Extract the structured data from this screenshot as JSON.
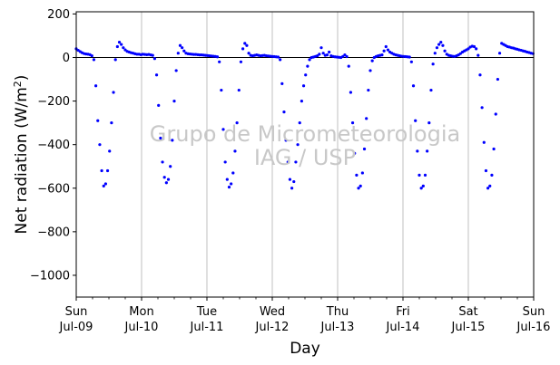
{
  "chart_data": {
    "type": "scatter",
    "title": "",
    "xlabel": "Day",
    "ylabel": "Net radiation (W/m²)",
    "ylabel_parts": {
      "before": "Net radiation (W/m",
      "sup": "2",
      "after": ")"
    },
    "watermark": [
      "Grupo de Micrometeorologia",
      "IAG / USP"
    ],
    "xlim": [
      0,
      7
    ],
    "ylim": [
      -1100,
      210
    ],
    "x_unit": "days since Sun Jul-09",
    "x_ticks": [
      {
        "x": 0,
        "day": "Sun",
        "date": "Jul-09"
      },
      {
        "x": 1,
        "day": "Mon",
        "date": "Jul-10"
      },
      {
        "x": 2,
        "day": "Tue",
        "date": "Jul-11"
      },
      {
        "x": 3,
        "day": "Wed",
        "date": "Jul-12"
      },
      {
        "x": 4,
        "day": "Thu",
        "date": "Jul-13"
      },
      {
        "x": 5,
        "day": "Fri",
        "date": "Jul-14"
      },
      {
        "x": 6,
        "day": "Sat",
        "date": "Jul-15"
      },
      {
        "x": 7,
        "day": "Sun",
        "date": "Jul-16"
      }
    ],
    "y_ticks": [
      200,
      0,
      -200,
      -400,
      -600,
      -800,
      -1000
    ],
    "grid": "vertical at day boundaries",
    "zero_line": true,
    "marker_color": "#0000ff",
    "series": [
      {
        "name": "",
        "points": [
          [
            0.0,
            40
          ],
          [
            0.03,
            33
          ],
          [
            0.06,
            27
          ],
          [
            0.09,
            22
          ],
          [
            0.12,
            18
          ],
          [
            0.15,
            16
          ],
          [
            0.18,
            15
          ],
          [
            0.21,
            13
          ],
          [
            0.24,
            8
          ],
          [
            0.27,
            -10
          ],
          [
            0.3,
            -130
          ],
          [
            0.33,
            -290
          ],
          [
            0.36,
            -400
          ],
          [
            0.39,
            -520
          ],
          [
            0.42,
            -590
          ],
          [
            0.45,
            -580
          ],
          [
            0.48,
            -520
          ],
          [
            0.51,
            -430
          ],
          [
            0.54,
            -300
          ],
          [
            0.57,
            -160
          ],
          [
            0.6,
            -10
          ],
          [
            0.63,
            50
          ],
          [
            0.66,
            70
          ],
          [
            0.69,
            60
          ],
          [
            0.72,
            45
          ],
          [
            0.75,
            35
          ],
          [
            0.78,
            28
          ],
          [
            0.81,
            25
          ],
          [
            0.84,
            22
          ],
          [
            0.87,
            20
          ],
          [
            0.9,
            17
          ],
          [
            0.93,
            15
          ],
          [
            0.96,
            15
          ],
          [
            0.99,
            13
          ],
          [
            1.02,
            15
          ],
          [
            1.05,
            14
          ],
          [
            1.08,
            13
          ],
          [
            1.11,
            14
          ],
          [
            1.14,
            12
          ],
          [
            1.17,
            10
          ],
          [
            1.2,
            -5
          ],
          [
            1.23,
            -80
          ],
          [
            1.26,
            -220
          ],
          [
            1.29,
            -370
          ],
          [
            1.32,
            -480
          ],
          [
            1.35,
            -550
          ],
          [
            1.38,
            -575
          ],
          [
            1.41,
            -560
          ],
          [
            1.44,
            -500
          ],
          [
            1.47,
            -380
          ],
          [
            1.5,
            -200
          ],
          [
            1.53,
            -60
          ],
          [
            1.56,
            20
          ],
          [
            1.59,
            55
          ],
          [
            1.62,
            45
          ],
          [
            1.65,
            30
          ],
          [
            1.68,
            20
          ],
          [
            1.71,
            17
          ],
          [
            1.74,
            16
          ],
          [
            1.77,
            15
          ],
          [
            1.8,
            14
          ],
          [
            1.83,
            14
          ],
          [
            1.86,
            13
          ],
          [
            1.89,
            12
          ],
          [
            1.92,
            12
          ],
          [
            1.95,
            11
          ],
          [
            1.98,
            10
          ],
          [
            2.01,
            9
          ],
          [
            2.04,
            8
          ],
          [
            2.07,
            7
          ],
          [
            2.1,
            6
          ],
          [
            2.13,
            5
          ],
          [
            2.16,
            3
          ],
          [
            2.19,
            -20
          ],
          [
            2.22,
            -150
          ],
          [
            2.25,
            -330
          ],
          [
            2.28,
            -480
          ],
          [
            2.31,
            -560
          ],
          [
            2.34,
            -595
          ],
          [
            2.37,
            -580
          ],
          [
            2.4,
            -530
          ],
          [
            2.43,
            -430
          ],
          [
            2.46,
            -300
          ],
          [
            2.49,
            -150
          ],
          [
            2.52,
            -20
          ],
          [
            2.55,
            40
          ],
          [
            2.58,
            65
          ],
          [
            2.61,
            55
          ],
          [
            2.64,
            20
          ],
          [
            2.67,
            10
          ],
          [
            2.7,
            8
          ],
          [
            2.73,
            10
          ],
          [
            2.76,
            12
          ],
          [
            2.79,
            10
          ],
          [
            2.82,
            8
          ],
          [
            2.85,
            9
          ],
          [
            2.88,
            10
          ],
          [
            2.91,
            8
          ],
          [
            2.94,
            7
          ],
          [
            2.97,
            6
          ],
          [
            3.0,
            5
          ],
          [
            3.03,
            4
          ],
          [
            3.06,
            3
          ],
          [
            3.09,
            2
          ],
          [
            3.12,
            -10
          ],
          [
            3.15,
            -120
          ],
          [
            3.18,
            -250
          ],
          [
            3.21,
            -380
          ],
          [
            3.24,
            -480
          ],
          [
            3.27,
            -560
          ],
          [
            3.3,
            -600
          ],
          [
            3.33,
            -570
          ],
          [
            3.36,
            -480
          ],
          [
            3.39,
            -400
          ],
          [
            3.42,
            -300
          ],
          [
            3.45,
            -200
          ],
          [
            3.48,
            -130
          ],
          [
            3.51,
            -80
          ],
          [
            3.54,
            -40
          ],
          [
            3.57,
            -10
          ],
          [
            3.6,
            0
          ],
          [
            3.63,
            2
          ],
          [
            3.66,
            5
          ],
          [
            3.69,
            8
          ],
          [
            3.72,
            15
          ],
          [
            3.75,
            45
          ],
          [
            3.78,
            20
          ],
          [
            3.81,
            10
          ],
          [
            3.84,
            12
          ],
          [
            3.87,
            25
          ],
          [
            3.9,
            8
          ],
          [
            3.93,
            5
          ],
          [
            3.96,
            3
          ],
          [
            3.99,
            2
          ],
          [
            4.02,
            1
          ],
          [
            4.05,
            0
          ],
          [
            4.08,
            5
          ],
          [
            4.11,
            12
          ],
          [
            4.14,
            4
          ],
          [
            4.17,
            -40
          ],
          [
            4.2,
            -160
          ],
          [
            4.23,
            -300
          ],
          [
            4.26,
            -440
          ],
          [
            4.29,
            -540
          ],
          [
            4.32,
            -600
          ],
          [
            4.35,
            -590
          ],
          [
            4.38,
            -530
          ],
          [
            4.41,
            -420
          ],
          [
            4.44,
            -280
          ],
          [
            4.47,
            -150
          ],
          [
            4.5,
            -60
          ],
          [
            4.53,
            -15
          ],
          [
            4.56,
            0
          ],
          [
            4.59,
            5
          ],
          [
            4.62,
            8
          ],
          [
            4.65,
            10
          ],
          [
            4.68,
            12
          ],
          [
            4.71,
            30
          ],
          [
            4.74,
            50
          ],
          [
            4.77,
            35
          ],
          [
            4.8,
            25
          ],
          [
            4.83,
            20
          ],
          [
            4.86,
            15
          ],
          [
            4.89,
            12
          ],
          [
            4.92,
            10
          ],
          [
            4.95,
            8
          ],
          [
            4.98,
            6
          ],
          [
            5.01,
            5
          ],
          [
            5.04,
            4
          ],
          [
            5.07,
            3
          ],
          [
            5.1,
            2
          ],
          [
            5.13,
            -20
          ],
          [
            5.16,
            -130
          ],
          [
            5.19,
            -290
          ],
          [
            5.22,
            -430
          ],
          [
            5.25,
            -540
          ],
          [
            5.28,
            -600
          ],
          [
            5.31,
            -590
          ],
          [
            5.34,
            -540
          ],
          [
            5.37,
            -430
          ],
          [
            5.4,
            -300
          ],
          [
            5.43,
            -150
          ],
          [
            5.46,
            -30
          ],
          [
            5.49,
            20
          ],
          [
            5.52,
            45
          ],
          [
            5.55,
            60
          ],
          [
            5.58,
            70
          ],
          [
            5.61,
            55
          ],
          [
            5.64,
            30
          ],
          [
            5.67,
            15
          ],
          [
            5.7,
            10
          ],
          [
            5.73,
            8
          ],
          [
            5.76,
            6
          ],
          [
            5.79,
            5
          ],
          [
            5.82,
            8
          ],
          [
            5.85,
            12
          ],
          [
            5.88,
            18
          ],
          [
            5.91,
            25
          ],
          [
            5.94,
            30
          ],
          [
            5.97,
            35
          ],
          [
            6.0,
            40
          ],
          [
            6.03,
            48
          ],
          [
            6.06,
            52
          ],
          [
            6.09,
            50
          ],
          [
            6.12,
            40
          ],
          [
            6.15,
            10
          ],
          [
            6.18,
            -80
          ],
          [
            6.21,
            -230
          ],
          [
            6.24,
            -390
          ],
          [
            6.27,
            -520
          ],
          [
            6.3,
            -600
          ],
          [
            6.33,
            -590
          ],
          [
            6.36,
            -540
          ],
          [
            6.39,
            -420
          ],
          [
            6.42,
            -260
          ],
          [
            6.45,
            -100
          ],
          [
            6.48,
            20
          ],
          [
            6.51,
            65
          ],
          [
            6.54,
            60
          ],
          [
            6.57,
            55
          ],
          [
            6.6,
            50
          ],
          [
            6.63,
            48
          ],
          [
            6.66,
            45
          ],
          [
            6.69,
            43
          ],
          [
            6.72,
            40
          ],
          [
            6.75,
            38
          ],
          [
            6.78,
            35
          ],
          [
            6.81,
            33
          ],
          [
            6.84,
            30
          ],
          [
            6.87,
            28
          ],
          [
            6.9,
            25
          ],
          [
            6.93,
            23
          ],
          [
            6.96,
            20
          ],
          [
            6.99,
            18
          ]
        ]
      }
    ]
  }
}
